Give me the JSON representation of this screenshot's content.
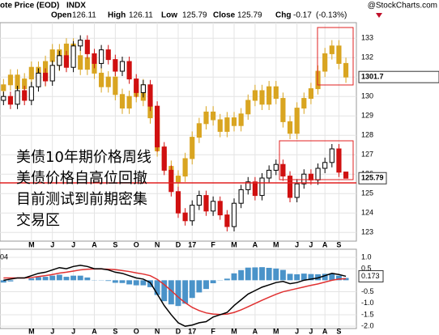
{
  "chart_data": [
    {
      "type": "candlestick",
      "title": "ote Price (EOD)",
      "symbol": "INDX",
      "watermark": "@StockCharts.com",
      "header": [
        {
          "label": "Open",
          "value": 126.11
        },
        {
          "label": "High",
          "value": 126.11
        },
        {
          "label": "Low",
          "value": 125.79
        },
        {
          "label": "Close",
          "value": 125.79
        },
        {
          "label": "Chg",
          "value": -0.17,
          "note": "(-0.13%)"
        }
      ],
      "annotation": [
        "美债10年期价格周线",
        "美债价格自高位回撤",
        "目前测试到前期密集",
        "交易区"
      ],
      "xlim": [
        -0.5,
        50.5
      ],
      "xticks": [
        {
          "value": 4,
          "label": "M"
        },
        {
          "value": 7,
          "label": "J"
        },
        {
          "value": 10,
          "label": "J"
        },
        {
          "value": 13,
          "label": "A"
        },
        {
          "value": 16,
          "label": "S"
        },
        {
          "value": 19,
          "label": "O"
        },
        {
          "value": 22,
          "label": "N"
        },
        {
          "value": 25,
          "label": "D"
        },
        {
          "value": 27,
          "label": "17"
        },
        {
          "value": 30,
          "label": "F"
        },
        {
          "value": 33,
          "label": "M"
        },
        {
          "value": 36,
          "label": "A"
        },
        {
          "value": 39,
          "label": "M"
        },
        {
          "value": 42,
          "label": "J"
        },
        {
          "value": 44,
          "label": "J"
        },
        {
          "value": 46,
          "label": "A"
        },
        {
          "value": 48,
          "label": "S"
        }
      ],
      "ylim": [
        122.55,
        133.8
      ],
      "yticks": [
        123,
        124,
        125,
        126,
        127,
        128,
        129,
        130,
        131,
        132,
        133
      ],
      "grid": true,
      "series": [
        {
          "color": "#d9a521",
          "last_label": "1301.7",
          "open": [
            130.3,
            130.6,
            131.1,
            130.4,
            130.9,
            131.5,
            130.8,
            131.8,
            132.4,
            131.6,
            132.7,
            132.1,
            131.4,
            132.0,
            131.2,
            130.5,
            131.0,
            130.1,
            129.4,
            130.0,
            130.6,
            129.8,
            128.9,
            127.2,
            126.4,
            125.6,
            125.9,
            126.8,
            127.9,
            128.6,
            129.2,
            128.8,
            128.2,
            128.9,
            128.5,
            129.1,
            129.8,
            130.3,
            129.6,
            130.5,
            129.9,
            128.7,
            128.1,
            129.4,
            129.9,
            130.4,
            131.3,
            132.2,
            132.6,
            131.7
          ],
          "high": [
            130.9,
            131.4,
            131.4,
            131.2,
            131.8,
            131.8,
            132.1,
            132.7,
            132.7,
            133.0,
            133.0,
            132.4,
            132.3,
            132.3,
            131.5,
            131.3,
            131.3,
            130.4,
            130.3,
            130.9,
            130.9,
            130.1,
            129.2,
            127.5,
            126.7,
            126.2,
            127.1,
            128.2,
            128.9,
            129.5,
            129.5,
            129.1,
            129.2,
            129.2,
            129.4,
            130.1,
            130.6,
            130.6,
            130.8,
            130.8,
            130.2,
            129.0,
            129.7,
            130.2,
            130.7,
            131.6,
            132.5,
            132.9,
            132.9,
            132.0
          ],
          "low": [
            130.0,
            130.3,
            130.1,
            130.1,
            130.6,
            130.5,
            130.5,
            131.5,
            131.3,
            131.3,
            131.8,
            131.1,
            131.1,
            130.9,
            130.2,
            130.2,
            129.8,
            129.1,
            129.1,
            129.7,
            129.5,
            128.6,
            126.9,
            126.1,
            125.3,
            125.3,
            125.6,
            126.5,
            127.6,
            128.3,
            128.5,
            127.9,
            127.9,
            128.2,
            128.2,
            128.8,
            129.5,
            129.3,
            129.3,
            129.6,
            128.4,
            127.8,
            127.8,
            129.1,
            129.6,
            130.1,
            131.0,
            131.9,
            131.4,
            130.7
          ],
          "close": [
            130.6,
            131.1,
            130.4,
            130.9,
            131.5,
            130.8,
            131.8,
            132.4,
            131.6,
            132.7,
            132.1,
            131.4,
            132.0,
            131.2,
            130.5,
            131.0,
            130.1,
            129.4,
            130.0,
            130.6,
            129.8,
            128.9,
            127.2,
            126.4,
            125.6,
            125.9,
            126.8,
            127.9,
            128.6,
            129.2,
            128.8,
            128.2,
            128.9,
            128.5,
            129.1,
            129.8,
            130.3,
            129.6,
            130.5,
            129.9,
            128.7,
            128.1,
            129.4,
            129.9,
            130.4,
            131.3,
            132.2,
            132.6,
            131.7,
            131.0
          ]
        },
        {
          "up_color": "#000000",
          "down_color": "#d01010",
          "open": [
            129.8,
            130.0,
            129.6,
            130.3,
            129.8,
            130.5,
            131.2,
            130.8,
            131.6,
            132.1,
            131.5,
            132.6,
            132.9,
            132.2,
            131.7,
            132.4,
            131.9,
            131.3,
            131.8,
            130.9,
            130.2,
            130.6,
            129.5,
            127.4,
            126.2,
            125.1,
            124.0,
            123.6,
            124.4,
            124.9,
            124.1,
            124.6,
            123.9,
            123.3,
            124.5,
            125.2,
            125.6,
            124.9,
            125.8,
            126.2,
            126.5,
            125.9,
            124.8,
            125.5,
            126.0,
            125.7,
            126.3,
            126.6,
            127.3,
            126.11
          ],
          "high": [
            130.25,
            130.25,
            130.55,
            130.55,
            130.75,
            131.45,
            131.45,
            131.85,
            132.35,
            132.35,
            132.85,
            133.15,
            133.15,
            132.45,
            132.65,
            132.65,
            132.15,
            132.05,
            132.05,
            131.15,
            130.85,
            130.85,
            129.75,
            127.65,
            126.45,
            125.35,
            124.25,
            124.65,
            125.15,
            125.15,
            124.85,
            124.85,
            124.15,
            124.75,
            125.45,
            125.85,
            125.85,
            126.05,
            126.45,
            126.75,
            126.75,
            126.15,
            125.75,
            126.25,
            126.25,
            126.55,
            126.85,
            127.55,
            127.55,
            126.11
          ],
          "low": [
            129.55,
            129.35,
            129.35,
            129.55,
            129.55,
            130.25,
            130.55,
            130.55,
            131.35,
            131.25,
            131.25,
            132.35,
            131.95,
            131.45,
            131.45,
            131.65,
            131.05,
            131.05,
            130.65,
            129.95,
            129.95,
            129.25,
            127.15,
            125.95,
            124.85,
            123.75,
            123.35,
            123.35,
            124.15,
            123.85,
            123.85,
            123.65,
            123.05,
            123.05,
            124.25,
            124.95,
            124.65,
            124.65,
            125.55,
            125.95,
            125.65,
            124.55,
            124.55,
            125.25,
            125.45,
            125.45,
            126.05,
            126.35,
            125.85,
            125.79
          ],
          "close": [
            130.0,
            129.6,
            130.3,
            129.8,
            130.5,
            131.2,
            130.8,
            131.6,
            132.1,
            131.5,
            132.6,
            132.9,
            132.2,
            131.7,
            132.4,
            131.9,
            131.3,
            131.8,
            130.9,
            130.2,
            130.6,
            129.5,
            127.4,
            126.2,
            125.1,
            124.0,
            123.6,
            124.4,
            124.9,
            124.1,
            124.6,
            123.9,
            123.3,
            124.5,
            125.2,
            125.6,
            124.9,
            125.8,
            126.2,
            126.5,
            125.9,
            124.8,
            125.5,
            126.0,
            125.7,
            126.3,
            126.6,
            127.3,
            126.1,
            125.79
          ]
        }
      ]
    },
    {
      "type": "macd",
      "label": "04",
      "ylim": [
        -2.1,
        1.35
      ],
      "yticks": [
        {
          "value": 1,
          "label": "1.0"
        },
        0.5,
        -0.5,
        {
          "value": -1,
          "label": "-1.0"
        },
        -1.5,
        {
          "value": -2,
          "label": "-2.0"
        }
      ],
      "series": [
        {
          "type": "histogram",
          "color": "#4a93c9",
          "values": [
            -0.1,
            -0.05,
            0,
            0,
            0.08,
            0.14,
            0.15,
            0.2,
            0.24,
            0.15,
            0.2,
            0.2,
            0.12,
            0.01,
            0.01,
            -0.03,
            -0.11,
            -0.12,
            -0.18,
            -0.22,
            -0.22,
            -0.3,
            -0.64,
            -0.91,
            -1.05,
            -1.12,
            -1.02,
            -0.77,
            -0.53,
            -0.38,
            -0.13,
            -0.01,
            0.07,
            0.3,
            0.44,
            0.55,
            0.56,
            0.57,
            0.54,
            0.51,
            0.45,
            0.28,
            0.26,
            0.29,
            0.27,
            0.26,
            0.28,
            0.3,
            0.2,
            0.1
          ]
        },
        {
          "type": "line",
          "color": "#e03030",
          "values": [
            0.1,
            0.1,
            0.1,
            0.1,
            0.12,
            0.16,
            0.2,
            0.25,
            0.31,
            0.35,
            0.4,
            0.45,
            0.48,
            0.49,
            0.49,
            0.48,
            0.46,
            0.42,
            0.38,
            0.32,
            0.27,
            0.2,
            0.04,
            -0.19,
            -0.45,
            -0.73,
            -0.98,
            -1.18,
            -1.32,
            -1.42,
            -1.47,
            -1.49,
            -1.47,
            -1.4,
            -1.29,
            -1.15,
            -1.01,
            -0.87,
            -0.74,
            -0.61,
            -0.5,
            -0.43,
            -0.36,
            -0.29,
            -0.22,
            -0.16,
            -0.08,
            0.0,
            0.05,
            0.07
          ]
        },
        {
          "type": "line",
          "color": "#000000",
          "last": true,
          "values": [
            0.0,
            0.05,
            0.1,
            0.1,
            0.2,
            0.3,
            0.35,
            0.45,
            0.55,
            0.5,
            0.6,
            0.65,
            0.6,
            0.5,
            0.5,
            0.45,
            0.35,
            0.3,
            0.2,
            0.1,
            0.05,
            -0.1,
            -0.6,
            -1.1,
            -1.5,
            -1.85,
            -2.0,
            -1.95,
            -1.85,
            -1.8,
            -1.6,
            -1.5,
            -1.4,
            -1.1,
            -0.85,
            -0.6,
            -0.45,
            -0.3,
            -0.2,
            -0.1,
            -0.05,
            -0.15,
            -0.1,
            0.0,
            0.05,
            0.1,
            0.2,
            0.3,
            0.25,
            0.173
          ]
        }
      ]
    }
  ]
}
